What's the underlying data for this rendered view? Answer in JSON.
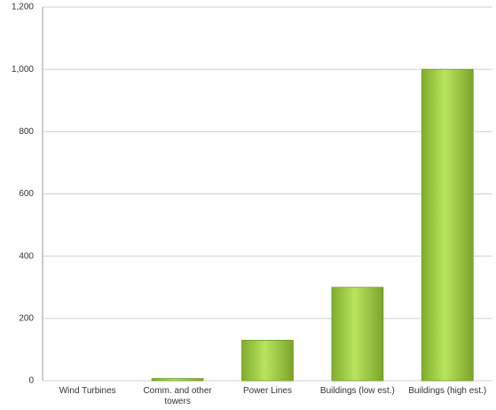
{
  "chart_data": {
    "type": "bar",
    "categories": [
      "Wind Turbines",
      "Comm. and other towers",
      "Power Lines",
      "Buildings (low est.)",
      "Buildings (high est.)"
    ],
    "values": [
      0,
      7,
      130,
      300,
      1000
    ],
    "color": "#8cbf3f",
    "ylim": [
      0,
      1200
    ],
    "yticks": [
      0,
      200,
      400,
      600,
      800,
      {
        "value": 1000,
        "label": "1,000"
      },
      {
        "value": 1200,
        "label": "1,200"
      }
    ],
    "grid": true
  }
}
